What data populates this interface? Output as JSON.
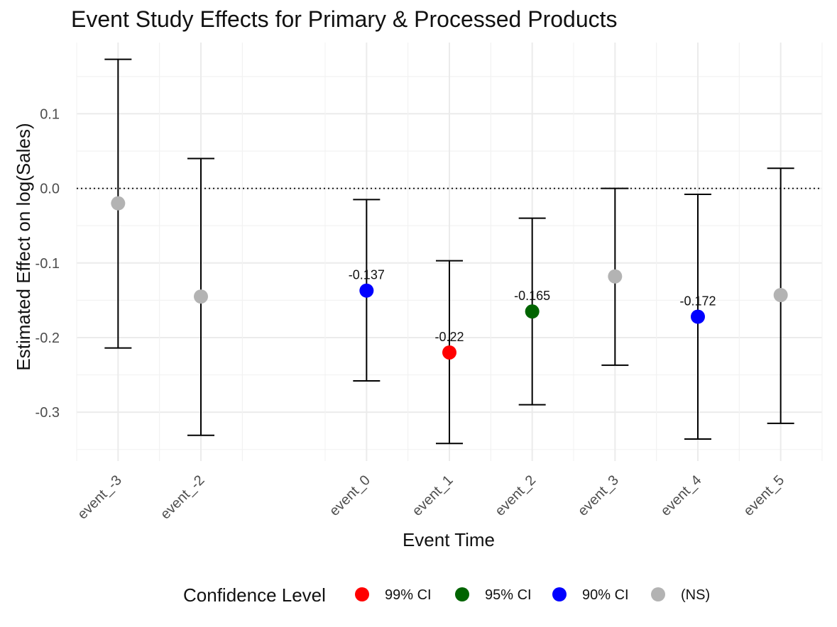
{
  "chart_data": {
    "type": "scatter",
    "title": "Event Study Effects for Primary & Processed Products",
    "xlabel": "Event Time",
    "ylabel": "Estimated Effect on log(Sales)",
    "x_ticks": [
      "event_-3",
      "event_-2",
      "event_0",
      "event_1",
      "event_2",
      "event_3",
      "event_4",
      "event_5"
    ],
    "x_positions": [
      -3,
      -2,
      0,
      1,
      2,
      3,
      4,
      5
    ],
    "xlim": [
      -3.5,
      5.5
    ],
    "ylim": [
      -0.3655,
      0.1955
    ],
    "y_ticks": [
      -0.3,
      -0.2,
      -0.1,
      0.0,
      0.1
    ],
    "y_tick_labels": [
      "-0.3",
      "-0.2",
      "-0.1",
      "0.0",
      "0.1"
    ],
    "grid": true,
    "reference_line": 0,
    "points": [
      {
        "x": -3,
        "label": "event_-3",
        "estimate": -0.02,
        "ci_low": -0.214,
        "ci_high": 0.173,
        "level": "(NS)",
        "show_label": false,
        "data_label": "-0.02"
      },
      {
        "x": -2,
        "label": "event_-2",
        "estimate": -0.145,
        "ci_low": -0.331,
        "ci_high": 0.04,
        "level": "(NS)",
        "show_label": false,
        "data_label": "-0.145"
      },
      {
        "x": 0,
        "label": "event_0",
        "estimate": -0.137,
        "ci_low": -0.258,
        "ci_high": -0.015,
        "level": "90% CI",
        "show_label": true,
        "data_label": "-0.137"
      },
      {
        "x": 1,
        "label": "event_1",
        "estimate": -0.22,
        "ci_low": -0.342,
        "ci_high": -0.097,
        "level": "99% CI",
        "show_label": true,
        "data_label": "-0.22"
      },
      {
        "x": 2,
        "label": "event_2",
        "estimate": -0.165,
        "ci_low": -0.29,
        "ci_high": -0.04,
        "level": "95% CI",
        "show_label": true,
        "data_label": "-0.165"
      },
      {
        "x": 3,
        "label": "event_3",
        "estimate": -0.118,
        "ci_low": -0.237,
        "ci_high": 0.0,
        "level": "(NS)",
        "show_label": false,
        "data_label": "-0.118"
      },
      {
        "x": 4,
        "label": "event_4",
        "estimate": -0.172,
        "ci_low": -0.336,
        "ci_high": -0.008,
        "level": "90% CI",
        "show_label": true,
        "data_label": "-0.172"
      },
      {
        "x": 5,
        "label": "event_5",
        "estimate": -0.143,
        "ci_low": -0.315,
        "ci_high": 0.027,
        "level": "(NS)",
        "show_label": false,
        "data_label": "-0.143"
      }
    ],
    "legend": {
      "title": "Confidence Level",
      "placement": "bottom",
      "items": [
        {
          "label": "99% CI",
          "color": "#ff0000"
        },
        {
          "label": "95% CI",
          "color": "#006400"
        },
        {
          "label": "90% CI",
          "color": "#0000ff"
        },
        {
          "label": "(NS)",
          "color": "#b3b3b3"
        }
      ]
    }
  }
}
